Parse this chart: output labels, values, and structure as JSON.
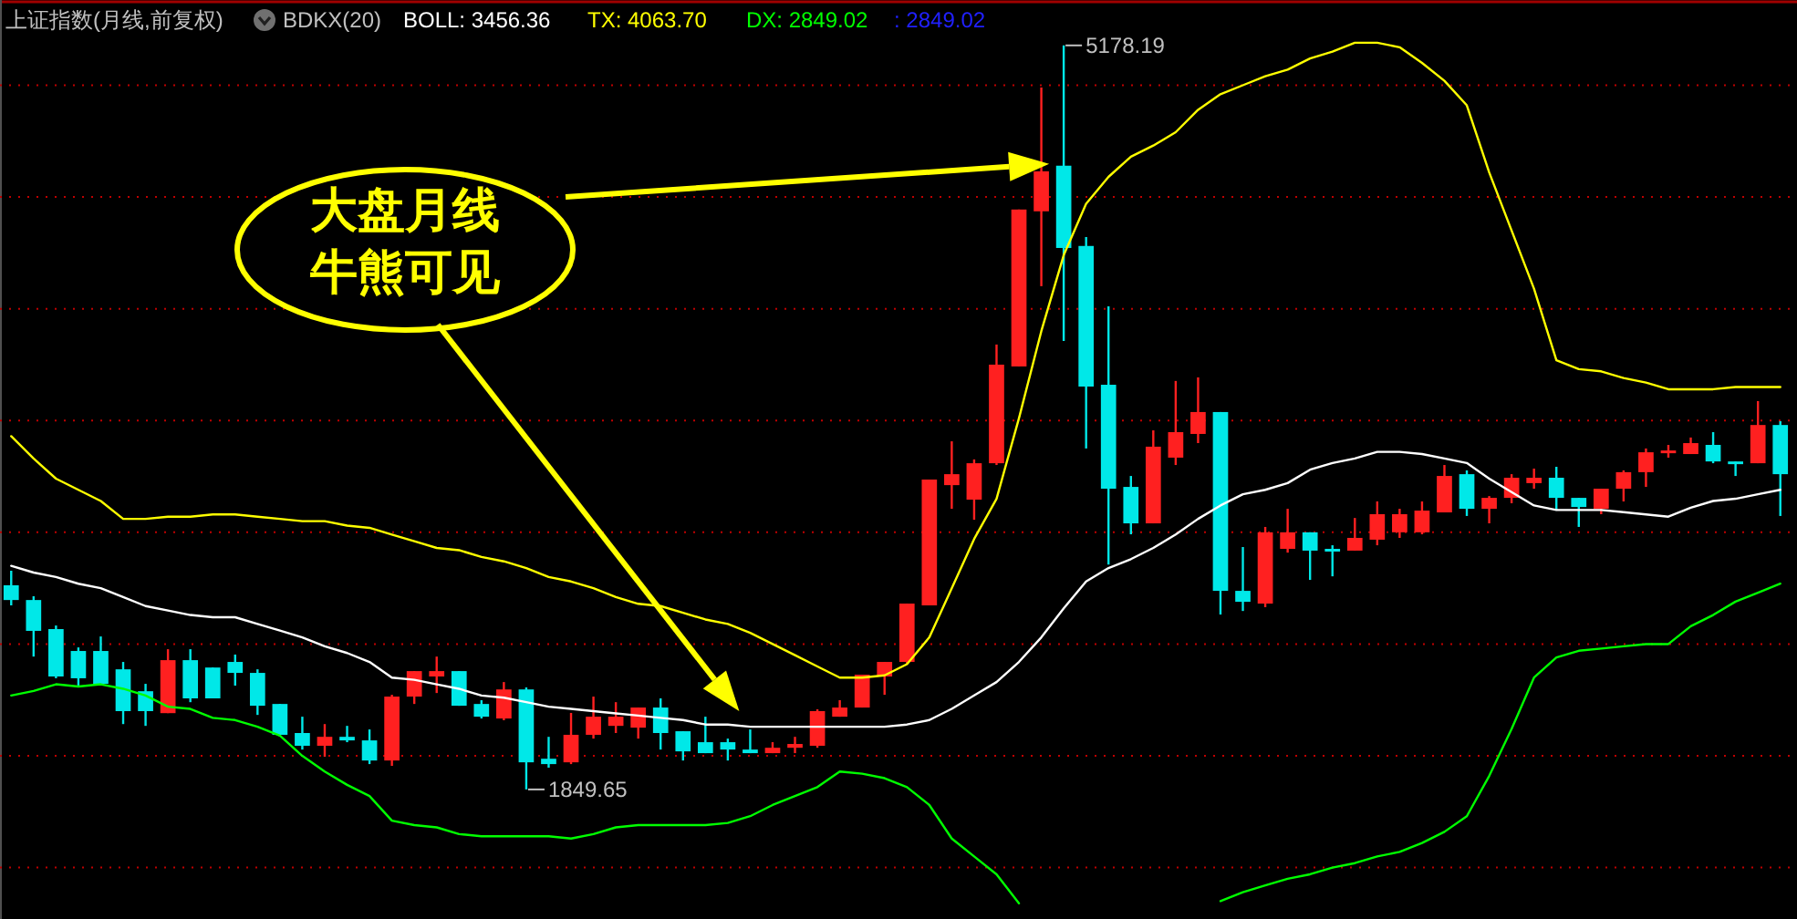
{
  "chart_data": {
    "type": "candlestick",
    "title": "上证指数(月线,前复权)",
    "subtitle": "BDKX(20)",
    "categories": [
      null,
      null,
      null,
      null,
      null,
      null,
      null,
      null,
      null,
      null,
      null,
      null,
      null,
      null,
      null,
      null,
      null,
      null,
      null,
      null,
      null,
      null,
      null,
      null,
      null,
      null,
      null,
      null,
      null,
      null,
      null,
      null,
      null,
      null,
      null,
      null,
      null,
      null,
      null,
      null,
      null,
      null,
      null,
      null,
      null,
      null,
      null,
      null,
      null,
      null,
      null,
      null,
      null,
      null,
      null,
      null,
      null,
      null,
      null,
      null,
      null,
      null,
      null,
      null,
      null,
      null,
      null,
      null,
      null,
      null,
      null,
      null,
      null,
      null,
      null,
      null,
      null,
      null,
      null,
      null
    ],
    "ohlc": [
      [
        2763,
        2828,
        2673,
        2697
      ],
      [
        2697,
        2714,
        2444,
        2559
      ],
      [
        2567,
        2583,
        2347,
        2355
      ],
      [
        2469,
        2485,
        2306,
        2347
      ],
      [
        2469,
        2534,
        2322,
        2322
      ],
      [
        2387,
        2420,
        2142,
        2200
      ],
      [
        2289,
        2322,
        2134,
        2200
      ],
      [
        2191,
        2477,
        2191,
        2428
      ],
      [
        2428,
        2477,
        2240,
        2257
      ],
      [
        2395,
        2395,
        2257,
        2257
      ],
      [
        2420,
        2453,
        2314,
        2371
      ],
      [
        2371,
        2387,
        2183,
        2224
      ],
      [
        2232,
        2232,
        2086,
        2094
      ],
      [
        2102,
        2175,
        2028,
        2045
      ],
      [
        2045,
        2142,
        1996,
        2085
      ],
      [
        2085,
        2134,
        2061,
        2069
      ],
      [
        2069,
        2118,
        1963,
        1979
      ],
      [
        1979,
        2273,
        1955,
        2265
      ],
      [
        2265,
        2379,
        2232,
        2379
      ],
      [
        2355,
        2444,
        2281,
        2379
      ],
      [
        2379,
        2379,
        2224,
        2224
      ],
      [
        2232,
        2249,
        2167,
        2175
      ],
      [
        2167,
        2330,
        2159,
        2297
      ],
      [
        2297,
        2306,
        1849.65,
        1971
      ],
      [
        1987,
        2085,
        1947,
        1963
      ],
      [
        1971,
        2192,
        1963,
        2094
      ],
      [
        2094,
        2265,
        2077,
        2175
      ],
      [
        2134,
        2240,
        2102,
        2175
      ],
      [
        2126,
        2216,
        2077,
        2216
      ],
      [
        2216,
        2257,
        2028,
        2102
      ],
      [
        2110,
        2110,
        1979,
        2020
      ],
      [
        2061,
        2175,
        2012,
        2012
      ],
      [
        2061,
        2077,
        1979,
        2028
      ],
      [
        2028,
        2118,
        2012,
        2012
      ],
      [
        2012,
        2061,
        2012,
        2036
      ],
      [
        2036,
        2085,
        2012,
        2053
      ],
      [
        2045,
        2208,
        2036,
        2200
      ],
      [
        2175,
        2249,
        2175,
        2216
      ],
      [
        2216,
        2363,
        2216,
        2363
      ],
      [
        2355,
        2420,
        2273,
        2420
      ],
      [
        2420,
        2681,
        2412,
        2681
      ],
      [
        2673,
        3236,
        2673,
        3236
      ],
      [
        3211,
        3407,
        3105,
        3260
      ],
      [
        3146,
        3326,
        3056,
        3309
      ],
      [
        3309,
        3840,
        3301,
        3750
      ],
      [
        3742,
        4444,
        3742,
        4444
      ],
      [
        4436,
        4990,
        4101,
        4615
      ],
      [
        4640,
        5178.19,
        3856,
        4272
      ],
      [
        4281,
        4321,
        3375,
        3652
      ],
      [
        3660,
        4011,
        2856,
        3195
      ],
      [
        3203,
        3252,
        2991,
        3040
      ],
      [
        3040,
        3456,
        3040,
        3383
      ],
      [
        3334,
        3677,
        3301,
        3448
      ],
      [
        3440,
        3693,
        3399,
        3538
      ],
      [
        3538,
        3538,
        2632,
        2738
      ],
      [
        2738,
        2934,
        2648,
        2689
      ],
      [
        2681,
        3024,
        2665,
        3000
      ],
      [
        2926,
        3105,
        2909,
        3000
      ],
      [
        3000,
        3000,
        2787,
        2918
      ],
      [
        2926,
        2942,
        2803,
        2918
      ],
      [
        2918,
        3064,
        2918,
        2975
      ],
      [
        2967,
        3138,
        2942,
        3081
      ],
      [
        3000,
        3105,
        2975,
        3081
      ],
      [
        3000,
        3138,
        2991,
        3097
      ],
      [
        3089,
        3301,
        3089,
        3252
      ],
      [
        3260,
        3277,
        3073,
        3105
      ],
      [
        3105,
        3162,
        3040,
        3154
      ],
      [
        3154,
        3260,
        3130,
        3244
      ],
      [
        3220,
        3285,
        3195,
        3244
      ],
      [
        3244,
        3293,
        3097,
        3154
      ],
      [
        3154,
        3154,
        3024,
        3113
      ],
      [
        3105,
        3195,
        3081,
        3195
      ],
      [
        3195,
        3277,
        3138,
        3269
      ],
      [
        3269,
        3375,
        3203,
        3358
      ],
      [
        3358,
        3391,
        3334,
        3366
      ],
      [
        3350,
        3424,
        3350,
        3399
      ],
      [
        3391,
        3448,
        3309,
        3317
      ],
      [
        3317,
        3317,
        3252,
        3309
      ],
      [
        3309,
        3587,
        3309,
        3480
      ],
      [
        3480,
        3497,
        3073,
        3260
      ]
    ],
    "series": [
      {
        "type": "line",
        "name": "BOLL: 3456.36",
        "color": "#ffffff",
        "values": [
          2850,
          2820,
          2800,
          2770,
          2750,
          2710,
          2670,
          2650,
          2630,
          2620,
          2620,
          2590,
          2560,
          2530,
          2490,
          2460,
          2420,
          2350,
          2340,
          2320,
          2300,
          2270,
          2260,
          2240,
          2220,
          2210,
          2200,
          2190,
          2180,
          2170,
          2160,
          2140,
          2140,
          2130,
          2130,
          2130,
          2130,
          2130,
          2130,
          2130,
          2140,
          2160,
          2210,
          2270,
          2330,
          2420,
          2530,
          2660,
          2780,
          2840,
          2880,
          2930,
          2990,
          3060,
          3120,
          3170,
          3190,
          3220,
          3280,
          3310,
          3330,
          3360,
          3360,
          3350,
          3330,
          3310,
          3240,
          3180,
          3120,
          3100,
          3100,
          3100,
          3090,
          3080,
          3070,
          3110,
          3140,
          3150,
          3170,
          3190
        ]
      },
      {
        "type": "line",
        "name": "TX: 4063.70",
        "color": "#ffff00",
        "values": [
          3430,
          3330,
          3240,
          3190,
          3140,
          3060,
          3060,
          3070,
          3070,
          3080,
          3080,
          3070,
          3060,
          3050,
          3050,
          3030,
          3020,
          2990,
          2960,
          2930,
          2920,
          2890,
          2870,
          2840,
          2800,
          2780,
          2750,
          2710,
          2680,
          2670,
          2640,
          2610,
          2590,
          2550,
          2500,
          2450,
          2400,
          2350,
          2350,
          2360,
          2410,
          2530,
          2750,
          2970,
          3150,
          3510,
          3900,
          4240,
          4470,
          4590,
          4680,
          4730,
          4790,
          4890,
          4960,
          5000,
          5040,
          5070,
          5120,
          5150,
          5190,
          5190,
          5170,
          5100,
          5020,
          4910,
          4610,
          4350,
          4090,
          3770,
          3730,
          3720,
          3690,
          3670,
          3640,
          3640,
          3640,
          3650,
          3650,
          3650
        ]
      },
      {
        "type": "line",
        "name": "DX: 2849.02",
        "color": "#00ff00",
        "values": [
          2270,
          2290,
          2320,
          2310,
          2320,
          2300,
          2270,
          2220,
          2210,
          2170,
          2160,
          2130,
          2090,
          2000,
          1930,
          1870,
          1820,
          1710,
          1690,
          1680,
          1650,
          1640,
          1640,
          1640,
          1640,
          1630,
          1650,
          1680,
          1690,
          1690,
          1690,
          1690,
          1700,
          1730,
          1780,
          1820,
          1860,
          1930,
          1920,
          1900,
          1860,
          1780,
          1630,
          1550,
          1470,
          1340,
          null,
          null,
          null,
          null,
          null,
          null,
          null,
          null,
          1350,
          1390,
          1420,
          1450,
          1470,
          1500,
          1520,
          1550,
          1570,
          1610,
          1660,
          1730,
          1910,
          2120,
          2350,
          2440,
          2470,
          2480,
          2490,
          2500,
          2500,
          2580,
          2630,
          2690,
          2730,
          2770
        ]
      }
    ],
    "ylim": [
      1270,
      5365
    ],
    "yticks": [
      {
        "value": 1500,
        "label": null
      },
      {
        "value": 2000,
        "label": null
      },
      {
        "value": 2500,
        "label": null
      },
      {
        "value": 3000,
        "label": null
      },
      {
        "value": 3500,
        "label": null
      },
      {
        "value": 4000,
        "label": null
      },
      {
        "value": 4500,
        "label": null
      },
      {
        "value": 5000,
        "label": null
      }
    ],
    "grid": "y",
    "legend": "top left",
    "annotations": [
      "大盘月线",
      "牛熊可见",
      "5178.19",
      "1849.65",
      ": 2849.02"
    ]
  }
}
